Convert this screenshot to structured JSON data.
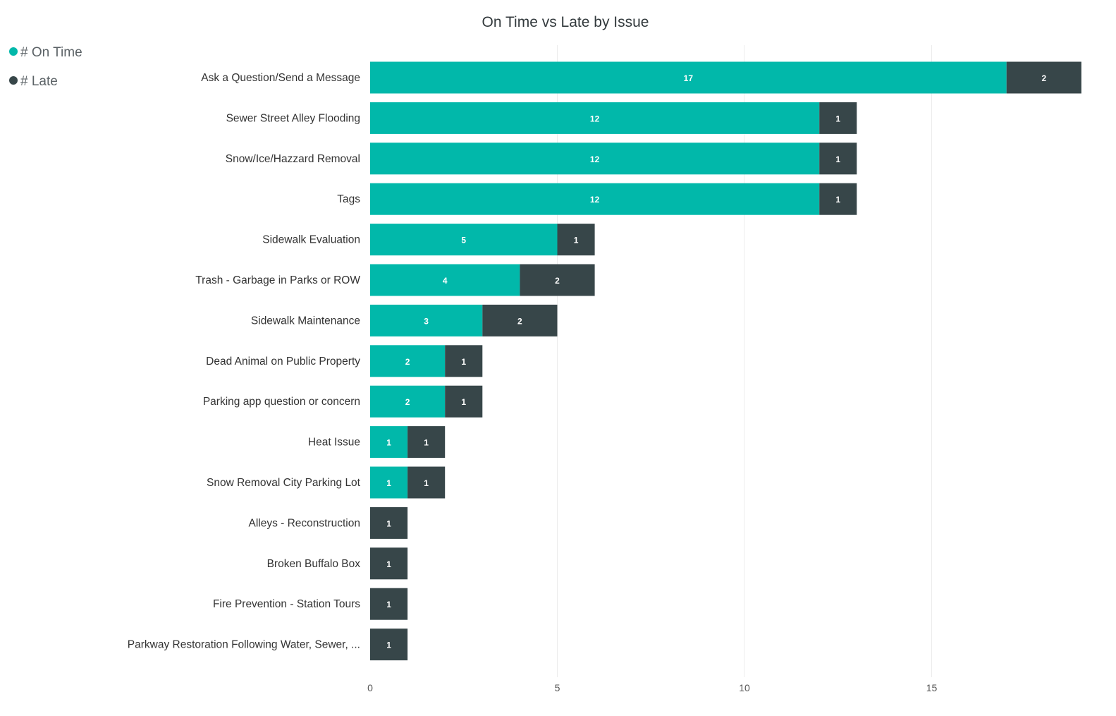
{
  "chart_data": {
    "type": "bar",
    "orientation": "horizontal",
    "stacked": true,
    "title": "On Time vs Late by Issue",
    "legend_position": "top-left",
    "grid": true,
    "xlim": [
      0,
      19
    ],
    "xticks": [
      0,
      5,
      10,
      15
    ],
    "categories": [
      "Ask a Question/Send a Message",
      "Sewer Street Alley Flooding",
      "Snow/Ice/Hazzard Removal",
      "Tags",
      "Sidewalk Evaluation",
      "Trash - Garbage in Parks or ROW",
      "Sidewalk Maintenance",
      "Dead Animal on Public Property",
      "Parking app question or concern",
      "Heat Issue",
      "Snow Removal City Parking Lot",
      "Alleys - Reconstruction",
      "Broken Buffalo Box",
      "Fire Prevention - Station Tours",
      "Parkway Restoration Following Water, Sewer, ..."
    ],
    "series": [
      {
        "name": "# On Time",
        "color": "#01b8aa",
        "values": [
          17,
          12,
          12,
          12,
          5,
          4,
          3,
          2,
          2,
          1,
          1,
          0,
          0,
          0,
          0
        ]
      },
      {
        "name": "# Late",
        "color": "#374649",
        "values": [
          2,
          1,
          1,
          1,
          1,
          2,
          2,
          1,
          1,
          1,
          1,
          1,
          1,
          1,
          1
        ]
      }
    ]
  }
}
